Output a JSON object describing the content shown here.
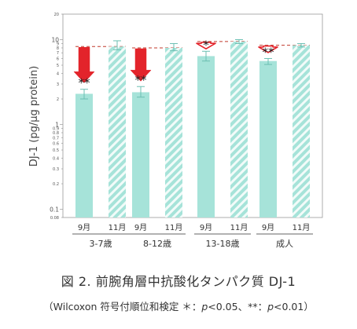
{
  "chart_data": {
    "type": "bar",
    "ylabel": "DJ-1 (pg/μg protein)",
    "yscale": "log",
    "ylim": [
      0.08,
      20
    ],
    "y_tick_labels": [
      "20",
      "10",
      "9",
      "8",
      "7",
      "6",
      "5",
      "4",
      "3",
      "2",
      "1",
      "0.9",
      "0.8",
      "0.7",
      "0.6",
      "0.5",
      "0.4",
      "0.3",
      "0.2",
      "0.1",
      "0.08"
    ],
    "groups": [
      "3-7歳",
      "8-12歳",
      "13-18歳",
      "成人"
    ],
    "months": [
      "9月",
      "11月"
    ],
    "series": [
      {
        "name": "9月",
        "pattern": "solid",
        "values": [
          2.3,
          2.4,
          6.4,
          5.6
        ],
        "err_low": [
          2.0,
          2.1,
          5.6,
          5.1
        ],
        "err_high": [
          2.6,
          2.8,
          7.3,
          6.0
        ]
      },
      {
        "name": "11月",
        "pattern": "hatched",
        "values": [
          8.3,
          8.0,
          9.5,
          8.6
        ],
        "err_low": [
          7.6,
          7.4,
          9.0,
          8.2
        ],
        "err_high": [
          9.7,
          9.0,
          10.0,
          9.0
        ]
      }
    ],
    "significance": [
      "**",
      "**",
      "*",
      "**"
    ],
    "arrow_style": [
      "filled",
      "filled",
      "outline",
      "outline"
    ],
    "colors": {
      "bar": "#a6e3d9",
      "hatch": "#ffffff",
      "arrow_fill": "#e3242b",
      "arrow_outline": "#e3242b",
      "dash": "#c0392b",
      "axis": "#9a9a9a"
    }
  },
  "caption": {
    "title": "図 2. 前腕角層中抗酸化タンパク質 DJ-1",
    "note_pre": "（Wilcoxon 符号付順位和検定 ＊：",
    "p1": "p",
    "note_mid": "<0.05、**：",
    "p2": "p",
    "note_post": "<0.01）"
  }
}
